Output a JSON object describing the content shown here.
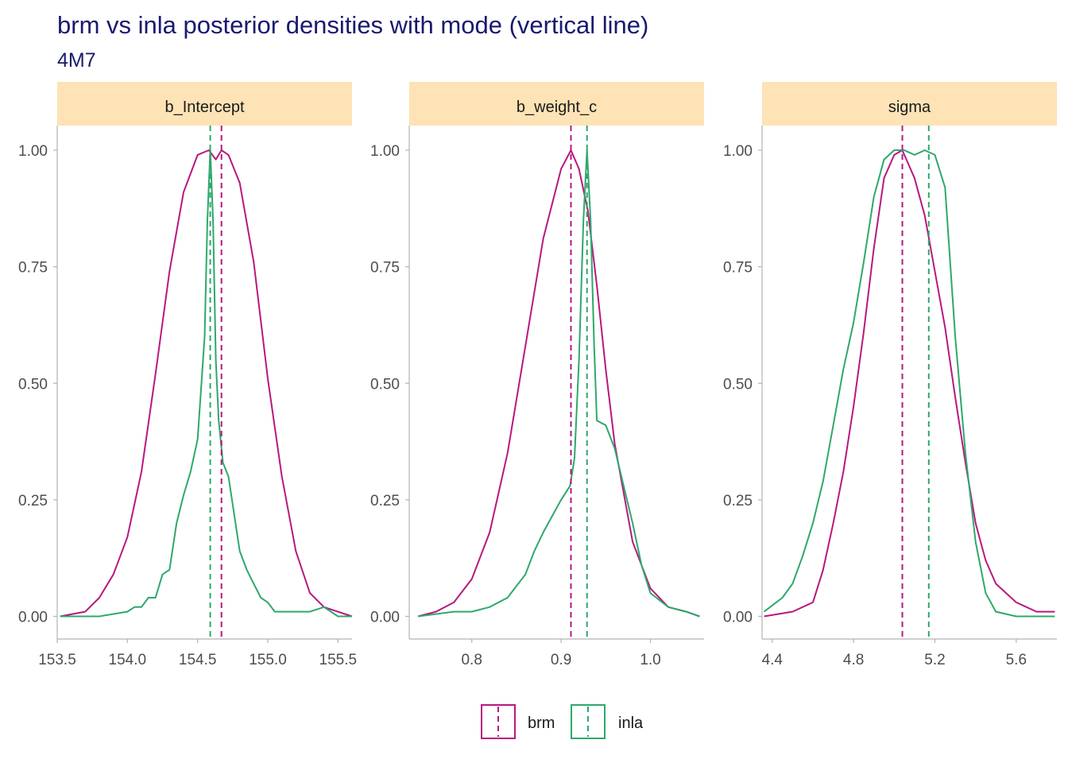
{
  "title": "brm vs inla posterior densities with mode (vertical line)",
  "subtitle": "4M7",
  "colors": {
    "brm": "#B8177F",
    "inla": "#2EA86B",
    "strip": "#FDE3B5"
  },
  "legend": {
    "position": "bottom",
    "entries": [
      "brm",
      "inla"
    ]
  },
  "chart_data": [
    {
      "type": "line",
      "panel": "b_Intercept",
      "xlim": [
        153.5,
        155.6
      ],
      "ylim": [
        0,
        1
      ],
      "x_ticks": [
        153.5,
        154.0,
        154.5,
        155.0,
        155.5
      ],
      "x_tick_labels": [
        "153.5",
        "154.0",
        "154.5",
        "155.0",
        "155.5"
      ],
      "y_ticks": [
        0,
        0.25,
        0.5,
        0.75,
        1.0
      ],
      "y_tick_labels": [
        "0.00",
        "0.25",
        "0.50",
        "0.75",
        "1.00"
      ],
      "series": [
        {
          "name": "brm",
          "mode": 154.67,
          "x": [
            153.52,
            153.7,
            153.8,
            153.9,
            154.0,
            154.1,
            154.2,
            154.3,
            154.4,
            154.5,
            154.58,
            154.63,
            154.67,
            154.72,
            154.8,
            154.9,
            155.0,
            155.1,
            155.2,
            155.3,
            155.4,
            155.6
          ],
          "y": [
            0.0,
            0.01,
            0.04,
            0.09,
            0.17,
            0.31,
            0.52,
            0.74,
            0.91,
            0.99,
            1.0,
            0.98,
            1.0,
            0.99,
            0.93,
            0.76,
            0.51,
            0.3,
            0.14,
            0.05,
            0.02,
            0.0
          ]
        },
        {
          "name": "inla",
          "mode": 154.59,
          "x": [
            153.52,
            153.8,
            154.0,
            154.05,
            154.1,
            154.15,
            154.2,
            154.25,
            154.3,
            154.35,
            154.4,
            154.45,
            154.5,
            154.55,
            154.57,
            154.59,
            154.61,
            154.63,
            154.65,
            154.68,
            154.72,
            154.76,
            154.8,
            154.85,
            154.9,
            154.95,
            155.0,
            155.05,
            155.1,
            155.2,
            155.3,
            155.4,
            155.5,
            155.6
          ],
          "y": [
            0.0,
            0.0,
            0.01,
            0.02,
            0.02,
            0.04,
            0.04,
            0.09,
            0.1,
            0.2,
            0.26,
            0.31,
            0.38,
            0.6,
            0.85,
            1.0,
            0.85,
            0.55,
            0.42,
            0.33,
            0.3,
            0.22,
            0.14,
            0.1,
            0.07,
            0.04,
            0.03,
            0.01,
            0.01,
            0.01,
            0.01,
            0.02,
            0.0,
            0.0
          ]
        }
      ]
    },
    {
      "type": "line",
      "panel": "b_weight_c",
      "xlim": [
        0.73,
        1.06
      ],
      "ylim": [
        0,
        1
      ],
      "x_ticks": [
        0.8,
        0.9,
        1.0
      ],
      "x_tick_labels": [
        "0.8",
        "0.9",
        "1.0"
      ],
      "y_ticks": [
        0,
        0.25,
        0.5,
        0.75,
        1.0
      ],
      "y_tick_labels": [
        "0.00",
        "0.25",
        "0.50",
        "0.75",
        "1.00"
      ],
      "series": [
        {
          "name": "brm",
          "mode": 0.911,
          "x": [
            0.74,
            0.76,
            0.78,
            0.8,
            0.82,
            0.84,
            0.86,
            0.88,
            0.9,
            0.911,
            0.92,
            0.93,
            0.94,
            0.95,
            0.96,
            0.98,
            1.0,
            1.02,
            1.04,
            1.055
          ],
          "y": [
            0.0,
            0.01,
            0.03,
            0.08,
            0.18,
            0.35,
            0.58,
            0.81,
            0.96,
            1.0,
            0.96,
            0.87,
            0.71,
            0.53,
            0.37,
            0.16,
            0.06,
            0.02,
            0.01,
            0.0
          ]
        },
        {
          "name": "inla",
          "mode": 0.929,
          "x": [
            0.74,
            0.78,
            0.8,
            0.82,
            0.84,
            0.86,
            0.87,
            0.88,
            0.9,
            0.91,
            0.915,
            0.92,
            0.925,
            0.929,
            0.933,
            0.937,
            0.94,
            0.95,
            0.96,
            0.97,
            0.98,
            0.99,
            1.0,
            1.02,
            1.04,
            1.055
          ],
          "y": [
            0.0,
            0.01,
            0.01,
            0.02,
            0.04,
            0.09,
            0.14,
            0.18,
            0.25,
            0.28,
            0.34,
            0.55,
            0.85,
            1.0,
            0.85,
            0.58,
            0.42,
            0.41,
            0.36,
            0.28,
            0.2,
            0.11,
            0.05,
            0.02,
            0.01,
            0.0
          ]
        }
      ]
    },
    {
      "type": "line",
      "panel": "sigma",
      "xlim": [
        4.35,
        5.8
      ],
      "ylim": [
        0,
        1
      ],
      "x_ticks": [
        4.4,
        4.8,
        5.2,
        5.6
      ],
      "x_tick_labels": [
        "4.4",
        "4.8",
        "5.2",
        "5.6"
      ],
      "y_ticks": [
        0,
        0.25,
        0.5,
        0.75,
        1.0
      ],
      "y_tick_labels": [
        "0.00",
        "0.25",
        "0.50",
        "0.75",
        "1.00"
      ],
      "series": [
        {
          "name": "brm",
          "mode": 5.04,
          "x": [
            4.36,
            4.5,
            4.6,
            4.65,
            4.7,
            4.75,
            4.8,
            4.85,
            4.9,
            4.95,
            5.0,
            5.04,
            5.1,
            5.15,
            5.2,
            5.25,
            5.3,
            5.35,
            5.4,
            5.45,
            5.5,
            5.6,
            5.7,
            5.79
          ],
          "y": [
            0.0,
            0.01,
            0.03,
            0.1,
            0.2,
            0.31,
            0.45,
            0.61,
            0.79,
            0.94,
            0.99,
            1.0,
            0.94,
            0.86,
            0.74,
            0.62,
            0.47,
            0.33,
            0.2,
            0.12,
            0.07,
            0.03,
            0.01,
            0.01
          ]
        },
        {
          "name": "inla",
          "mode": 5.17,
          "x": [
            4.36,
            4.45,
            4.5,
            4.55,
            4.6,
            4.65,
            4.7,
            4.75,
            4.8,
            4.85,
            4.9,
            4.95,
            5.0,
            5.05,
            5.1,
            5.15,
            5.2,
            5.25,
            5.3,
            5.35,
            5.4,
            5.45,
            5.5,
            5.6,
            5.7,
            5.79
          ],
          "y": [
            0.01,
            0.04,
            0.07,
            0.13,
            0.2,
            0.29,
            0.41,
            0.53,
            0.63,
            0.76,
            0.9,
            0.98,
            1.0,
            1.0,
            0.99,
            1.0,
            0.99,
            0.92,
            0.6,
            0.35,
            0.16,
            0.05,
            0.01,
            0.0,
            0.0,
            0.0
          ]
        }
      ]
    }
  ]
}
